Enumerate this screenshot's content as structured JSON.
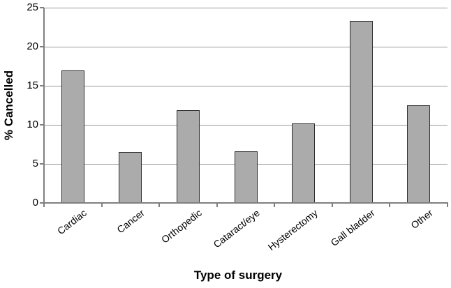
{
  "chart_data": {
    "type": "bar",
    "title": "",
    "categories": [
      "Cardiac",
      "Cancer",
      "Orthopedic",
      "Cataract/eye",
      "Hysterectomy",
      "Gall bladder",
      "Other"
    ],
    "values": [
      17,
      6.5,
      11.9,
      6.6,
      10.2,
      23.3,
      12.5
    ],
    "xlabel": "Type of surgery",
    "ylabel": "% Cancelled",
    "ylim": [
      0,
      25
    ],
    "yticks": [
      0,
      5,
      10,
      15,
      20,
      25
    ],
    "grid": "horizontal",
    "legend": "none",
    "colors": {
      "bar_fill": "#ababab",
      "bar_border": "#2e2e2e",
      "gridline": "#999999",
      "axis": "#7f7f7f",
      "text": "#000000",
      "background": "#ffffff"
    }
  }
}
